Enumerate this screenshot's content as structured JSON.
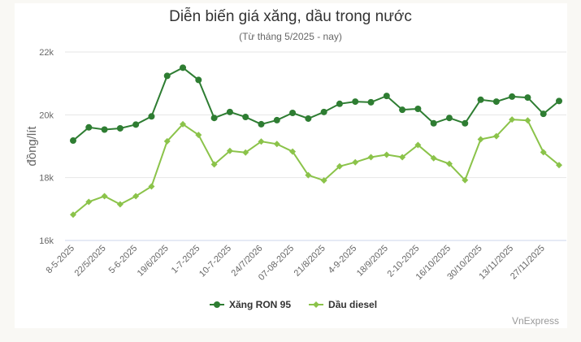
{
  "header": {
    "title": "Diễn biến giá xăng, dầu trong nước",
    "subtitle": "(Từ tháng 5/2025 - nay)"
  },
  "credit": "VnExpress",
  "colors": {
    "ron95": "#2e7d32",
    "diesel": "#8bc34a",
    "grid": "#e6e6e6",
    "axis_text": "#666666"
  },
  "chart_data": {
    "type": "line",
    "title": "Diễn biến giá xăng, dầu trong nước",
    "subtitle": "(Từ tháng 5/2025 - nay)",
    "xlabel": "",
    "ylabel": "đồng/lít",
    "ylim": [
      16000,
      22000
    ],
    "yticks": [
      "16k",
      "18k",
      "20k",
      "22k"
    ],
    "grid": true,
    "legend_position": "bottom",
    "x_tick_labels": [
      "8-5-2025",
      "22/5/2025",
      "5-6-2025",
      "19/6/2025",
      "1-7-2025",
      "10-7-2025",
      "24/7/2026",
      "07-08-2025",
      "21/8/2025",
      "4-9-2025",
      "18/9/2025",
      "2-10-2025",
      "16/10/2025",
      "30/10/2025",
      "13/11/2025",
      "27/11/2025"
    ],
    "series": [
      {
        "name": "Xăng RON 95",
        "marker": "circle",
        "values": [
          19180,
          19600,
          19530,
          19570,
          19690,
          19950,
          21240,
          21500,
          21110,
          19900,
          20090,
          19930,
          19700,
          19830,
          20060,
          19880,
          20090,
          20350,
          20420,
          20400,
          20600,
          20160,
          20190,
          19730,
          19900,
          19730,
          20480,
          20420,
          20580,
          20550,
          20030,
          20440
        ]
      },
      {
        "name": "Dầu diesel",
        "marker": "diamond",
        "values": [
          16820,
          17230,
          17410,
          17150,
          17410,
          17720,
          19160,
          19700,
          19360,
          18420,
          18850,
          18800,
          19150,
          19070,
          18830,
          18080,
          17910,
          18360,
          18490,
          18650,
          18730,
          18650,
          19040,
          18620,
          18440,
          17920,
          19220,
          19320,
          19850,
          19820,
          18810,
          18400
        ]
      }
    ]
  },
  "legend": {
    "items": [
      {
        "label": "Xăng RON 95"
      },
      {
        "label": "Dầu diesel"
      }
    ]
  }
}
